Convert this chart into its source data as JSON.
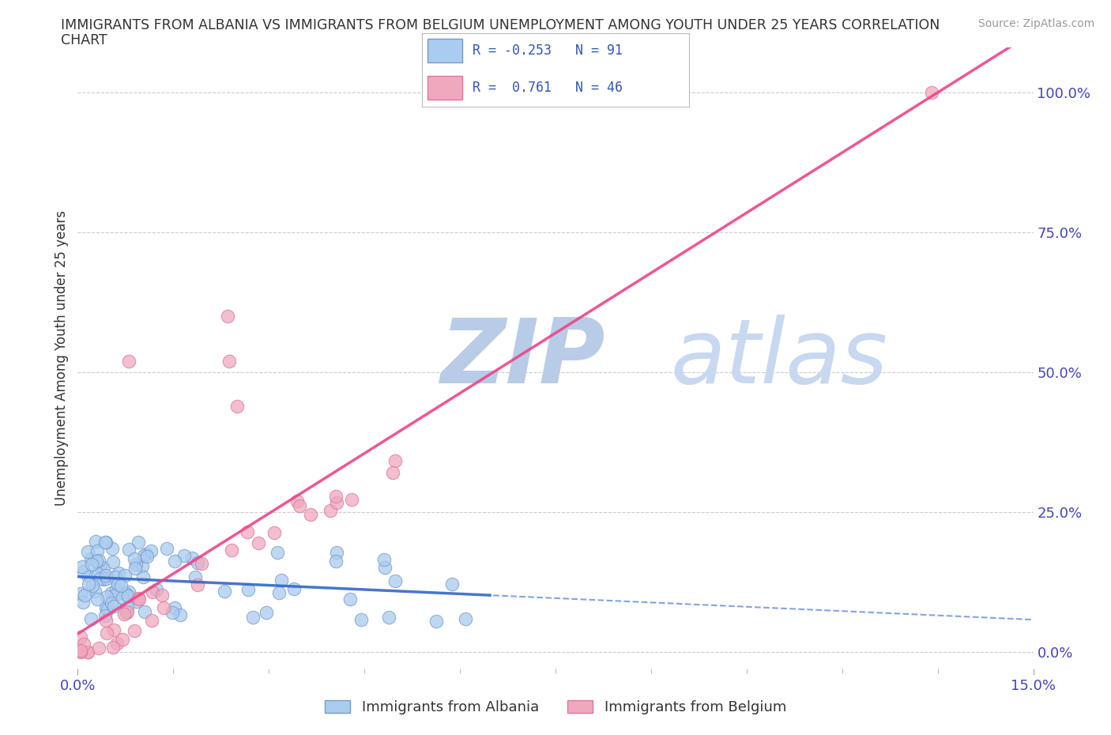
{
  "title_line1": "IMMIGRANTS FROM ALBANIA VS IMMIGRANTS FROM BELGIUM UNEMPLOYMENT AMONG YOUTH UNDER 25 YEARS CORRELATION",
  "title_line2": "CHART",
  "source": "Source: ZipAtlas.com",
  "ylabel": "Unemployment Among Youth under 25 years",
  "xlim": [
    0.0,
    0.15
  ],
  "ylim": [
    -0.03,
    1.08
  ],
  "yticks_right": [
    0.0,
    0.25,
    0.5,
    0.75,
    1.0
  ],
  "yticklabels_right": [
    "0.0%",
    "25.0%",
    "50.0%",
    "75.0%",
    "100.0%"
  ],
  "grid_color": "#cccccc",
  "background_color": "#ffffff",
  "albania_color": "#aaccee",
  "belgium_color": "#f0a8be",
  "albania_edge_color": "#7799cc",
  "belgium_edge_color": "#dd7799",
  "trend_albania_color": "#3366cc",
  "trend_belgium_color": "#ee4488",
  "legend_R_albania": "-0.253",
  "legend_N_albania": "91",
  "legend_R_belgium": "0.761",
  "legend_N_belgium": "46",
  "legend_text_color": "#3355bb",
  "watermark_zip": "ZIP",
  "watermark_atlas": "atlas",
  "watermark_color_zip": "#b8cce8",
  "watermark_color_atlas": "#c8d8f0",
  "tick_color": "#4444bb",
  "title_color": "#333333",
  "source_color": "#999999",
  "label_color": "#333333"
}
